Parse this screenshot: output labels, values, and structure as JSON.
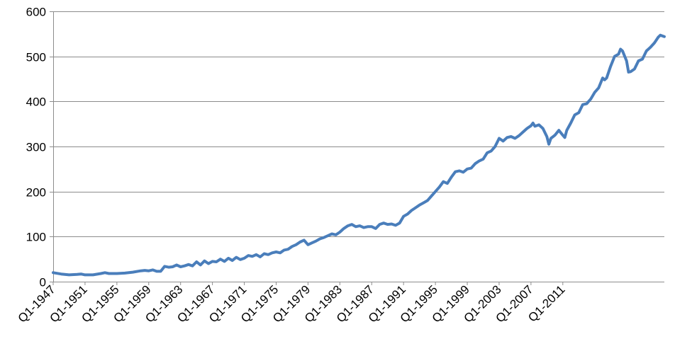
{
  "chart_data": {
    "type": "line",
    "title": "",
    "xlabel": "",
    "ylabel": "",
    "ylim": [
      0,
      600
    ],
    "y_ticks": [
      0,
      100,
      200,
      300,
      400,
      500,
      600
    ],
    "grid": {
      "horizontal": true,
      "vertical": false
    },
    "legend": "none",
    "x_tick_labels": [
      "Q1-1947",
      "Q1-1951",
      "Q1-1955",
      "Q1-1959",
      "Q1-1963",
      "Q1-1967",
      "Q1-1971",
      "Q1-1975",
      "Q1-1979",
      "Q1-1983",
      "Q1-1987",
      "Q1-1991",
      "Q1-1995",
      "Q1-1999",
      "Q1-2003",
      "Q1-2007",
      "Q1-2011"
    ],
    "series": [
      {
        "color": "#4a7ebb",
        "points": [
          [
            "1947Q1",
            20
          ],
          [
            "1948Q1",
            17
          ],
          [
            "1949Q1",
            15
          ],
          [
            "1950Q1",
            16
          ],
          [
            "1950Q3",
            17
          ],
          [
            "1951Q1",
            15
          ],
          [
            "1952Q1",
            15
          ],
          [
            "1953Q1",
            18
          ],
          [
            "1953Q3",
            20
          ],
          [
            "1954Q1",
            18
          ],
          [
            "1955Q1",
            18
          ],
          [
            "1956Q1",
            19
          ],
          [
            "1957Q1",
            21
          ],
          [
            "1958Q1",
            24
          ],
          [
            "1958Q3",
            25
          ],
          [
            "1959Q1",
            24
          ],
          [
            "1959Q3",
            26
          ],
          [
            "1960Q1",
            23
          ],
          [
            "1960Q3",
            23
          ],
          [
            "1961Q1",
            34
          ],
          [
            "1961Q3",
            32
          ],
          [
            "1962Q1",
            33
          ],
          [
            "1962Q3",
            37
          ],
          [
            "1963Q1",
            33
          ],
          [
            "1963Q3",
            35
          ],
          [
            "1964Q1",
            38
          ],
          [
            "1964Q3",
            35
          ],
          [
            "1965Q1",
            44
          ],
          [
            "1965Q3",
            37
          ],
          [
            "1966Q1",
            46
          ],
          [
            "1966Q3",
            40
          ],
          [
            "1967Q1",
            45
          ],
          [
            "1967Q3",
            44
          ],
          [
            "1968Q1",
            50
          ],
          [
            "1968Q3",
            45
          ],
          [
            "1969Q1",
            52
          ],
          [
            "1969Q3",
            47
          ],
          [
            "1970Q1",
            54
          ],
          [
            "1970Q3",
            49
          ],
          [
            "1971Q1",
            52
          ],
          [
            "1971Q3",
            58
          ],
          [
            "1972Q1",
            56
          ],
          [
            "1972Q3",
            60
          ],
          [
            "1973Q1",
            55
          ],
          [
            "1973Q3",
            62
          ],
          [
            "1974Q1",
            60
          ],
          [
            "1974Q3",
            64
          ],
          [
            "1975Q1",
            66
          ],
          [
            "1975Q3",
            64
          ],
          [
            "1976Q1",
            70
          ],
          [
            "1976Q3",
            72
          ],
          [
            "1977Q1",
            78
          ],
          [
            "1977Q3",
            82
          ],
          [
            "1978Q1",
            88
          ],
          [
            "1978Q3",
            92
          ],
          [
            "1979Q1",
            82
          ],
          [
            "1979Q3",
            86
          ],
          [
            "1980Q1",
            90
          ],
          [
            "1980Q3",
            95
          ],
          [
            "1981Q1",
            98
          ],
          [
            "1981Q3",
            102
          ],
          [
            "1982Q1",
            106
          ],
          [
            "1982Q3",
            104
          ],
          [
            "1983Q1",
            110
          ],
          [
            "1983Q3",
            118
          ],
          [
            "1984Q1",
            124
          ],
          [
            "1984Q3",
            127
          ],
          [
            "1985Q1",
            122
          ],
          [
            "1985Q3",
            124
          ],
          [
            "1986Q1",
            120
          ],
          [
            "1986Q3",
            122
          ],
          [
            "1987Q1",
            122
          ],
          [
            "1987Q3",
            118
          ],
          [
            "1988Q1",
            127
          ],
          [
            "1988Q3",
            130
          ],
          [
            "1989Q1",
            127
          ],
          [
            "1989Q3",
            128
          ],
          [
            "1990Q1",
            125
          ],
          [
            "1990Q3",
            130
          ],
          [
            "1991Q1",
            145
          ],
          [
            "1991Q3",
            150
          ],
          [
            "1992Q1",
            158
          ],
          [
            "1992Q3",
            164
          ],
          [
            "1993Q1",
            170
          ],
          [
            "1993Q3",
            175
          ],
          [
            "1994Q1",
            180
          ],
          [
            "1994Q3",
            190
          ],
          [
            "1995Q1",
            200
          ],
          [
            "1995Q3",
            210
          ],
          [
            "1996Q1",
            222
          ],
          [
            "1996Q3",
            218
          ],
          [
            "1997Q1",
            232
          ],
          [
            "1997Q3",
            244
          ],
          [
            "1998Q1",
            246
          ],
          [
            "1998Q3",
            243
          ],
          [
            "1999Q1",
            250
          ],
          [
            "1999Q3",
            252
          ],
          [
            "2000Q1",
            262
          ],
          [
            "2000Q3",
            268
          ],
          [
            "2001Q1",
            272
          ],
          [
            "2001Q3",
            286
          ],
          [
            "2002Q1",
            290
          ],
          [
            "2002Q3",
            300
          ],
          [
            "2003Q1",
            318
          ],
          [
            "2003Q3",
            312
          ],
          [
            "2004Q1",
            320
          ],
          [
            "2004Q3",
            322
          ],
          [
            "2005Q1",
            318
          ],
          [
            "2005Q3",
            324
          ],
          [
            "2006Q1",
            332
          ],
          [
            "2006Q3",
            340
          ],
          [
            "2007Q1",
            346
          ],
          [
            "2007Q2",
            352
          ],
          [
            "2007Q3",
            345
          ],
          [
            "2008Q1",
            348
          ],
          [
            "2008Q3",
            340
          ],
          [
            "2009Q1",
            322
          ],
          [
            "2009Q2",
            305
          ],
          [
            "2009Q3",
            318
          ],
          [
            "2010Q1",
            325
          ],
          [
            "2010Q3",
            336
          ],
          [
            "2011Q1",
            325
          ],
          [
            "2011Q2",
            320
          ],
          [
            "2011Q3",
            336
          ],
          [
            "2012Q1",
            352
          ],
          [
            "2012Q3",
            370
          ],
          [
            "2013Q1",
            375
          ],
          [
            "2013Q3",
            393
          ],
          [
            "2014Q1",
            395
          ],
          [
            "2014Q3",
            405
          ],
          [
            "2015Q1",
            420
          ],
          [
            "2015Q3",
            430
          ],
          [
            "2016Q1",
            452
          ],
          [
            "2016Q2",
            448
          ],
          [
            "2016Q3",
            452
          ],
          [
            "2017Q1",
            478
          ],
          [
            "2017Q3",
            500
          ],
          [
            "2018Q1",
            505
          ],
          [
            "2018Q2",
            516
          ],
          [
            "2018Q3",
            512
          ],
          [
            "2019Q1",
            490
          ],
          [
            "2019Q2",
            465
          ],
          [
            "2019Q3",
            466
          ],
          [
            "2020Q1",
            472
          ],
          [
            "2020Q3",
            490
          ],
          [
            "2021Q1",
            494
          ],
          [
            "2021Q3",
            512
          ],
          [
            "2022Q1",
            520
          ],
          [
            "2022Q3",
            530
          ],
          [
            "2023Q1",
            543
          ],
          [
            "2023Q2",
            547
          ],
          [
            "2023Q4",
            544
          ]
        ]
      }
    ]
  }
}
